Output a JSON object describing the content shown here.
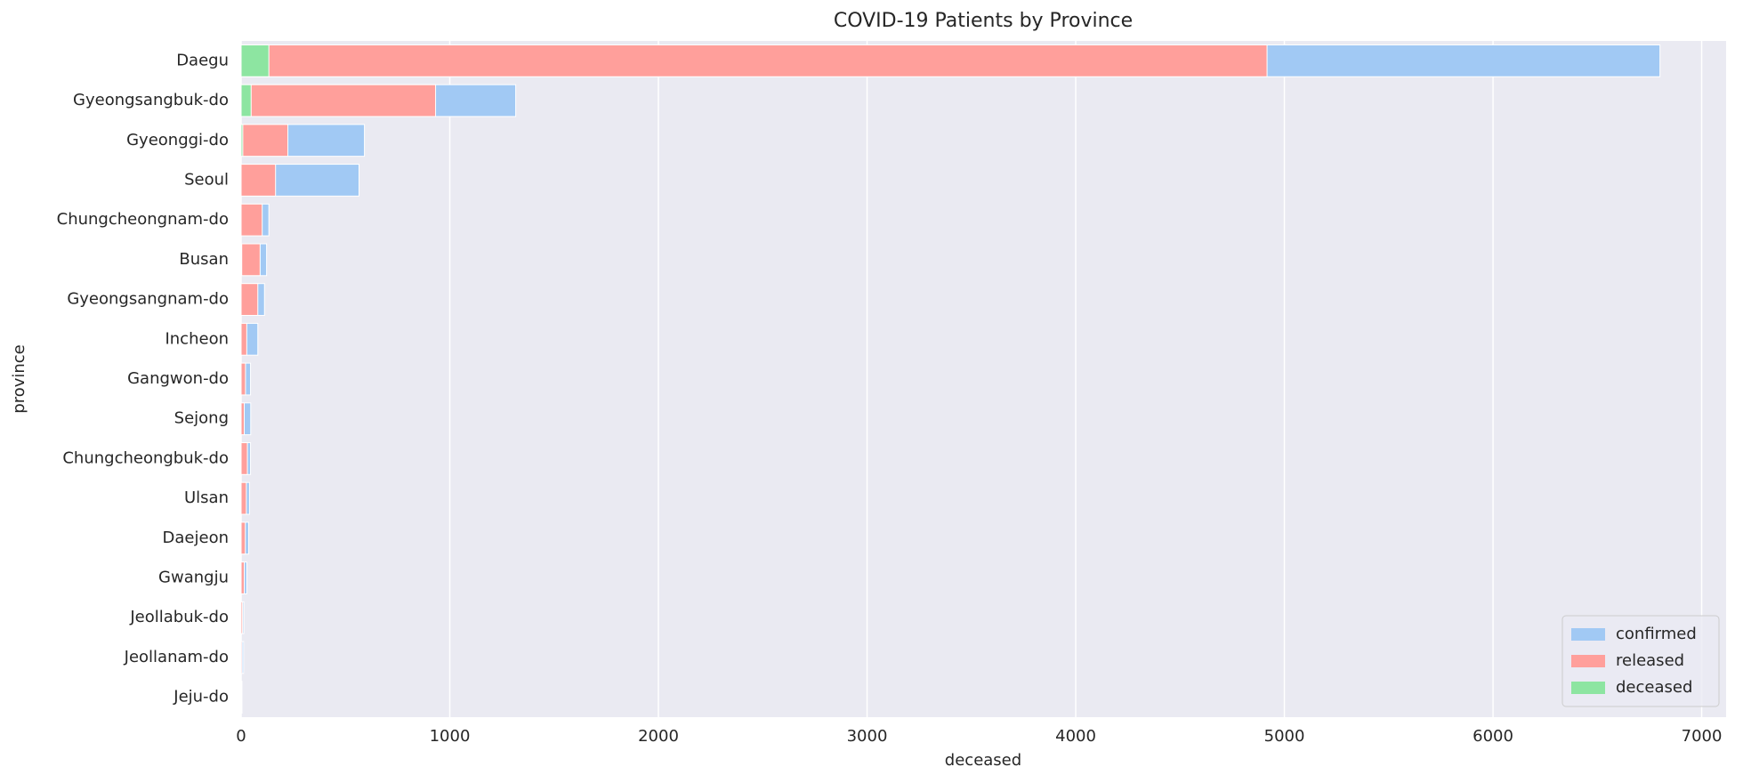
{
  "chart_data": {
    "type": "bar",
    "orientation": "horizontal",
    "overlap": true,
    "title": "COVID-19 Patients by Province",
    "x_label": "deceased",
    "y_label": "province",
    "categories": [
      "Daegu",
      "Gyeongsangbuk-do",
      "Gyeonggi-do",
      "Seoul",
      "Chungcheongnam-do",
      "Busan",
      "Gyeongsangnam-do",
      "Incheon",
      "Gangwon-do",
      "Sejong",
      "Chungcheongbuk-do",
      "Ulsan",
      "Daejeon",
      "Gwangju",
      "Jeollabuk-do",
      "Jeollanam-do",
      "Jeju-do"
    ],
    "series": [
      {
        "name": "confirmed",
        "color": "#a1c9f4",
        "values": [
          6800,
          1316,
          591,
          565,
          133,
          122,
          112,
          80,
          45,
          46,
          45,
          40,
          36,
          27,
          13,
          12,
          4
        ]
      },
      {
        "name": "released",
        "color": "#ff9f9b",
        "values": [
          4917,
          932,
          224,
          165,
          101,
          91,
          80,
          27,
          21,
          15,
          30,
          25,
          20,
          15,
          7,
          5,
          3
        ]
      },
      {
        "name": "deceased",
        "color": "#8de5a1",
        "values": [
          133,
          48,
          8,
          0,
          0,
          3,
          0,
          0,
          0,
          0,
          0,
          0,
          0,
          0,
          0,
          0,
          0
        ]
      }
    ],
    "xlim": [
      0,
      7117
    ],
    "xticks": [
      0,
      1000,
      2000,
      3000,
      4000,
      5000,
      6000,
      7000
    ],
    "grid": true,
    "legend": "lower right"
  }
}
